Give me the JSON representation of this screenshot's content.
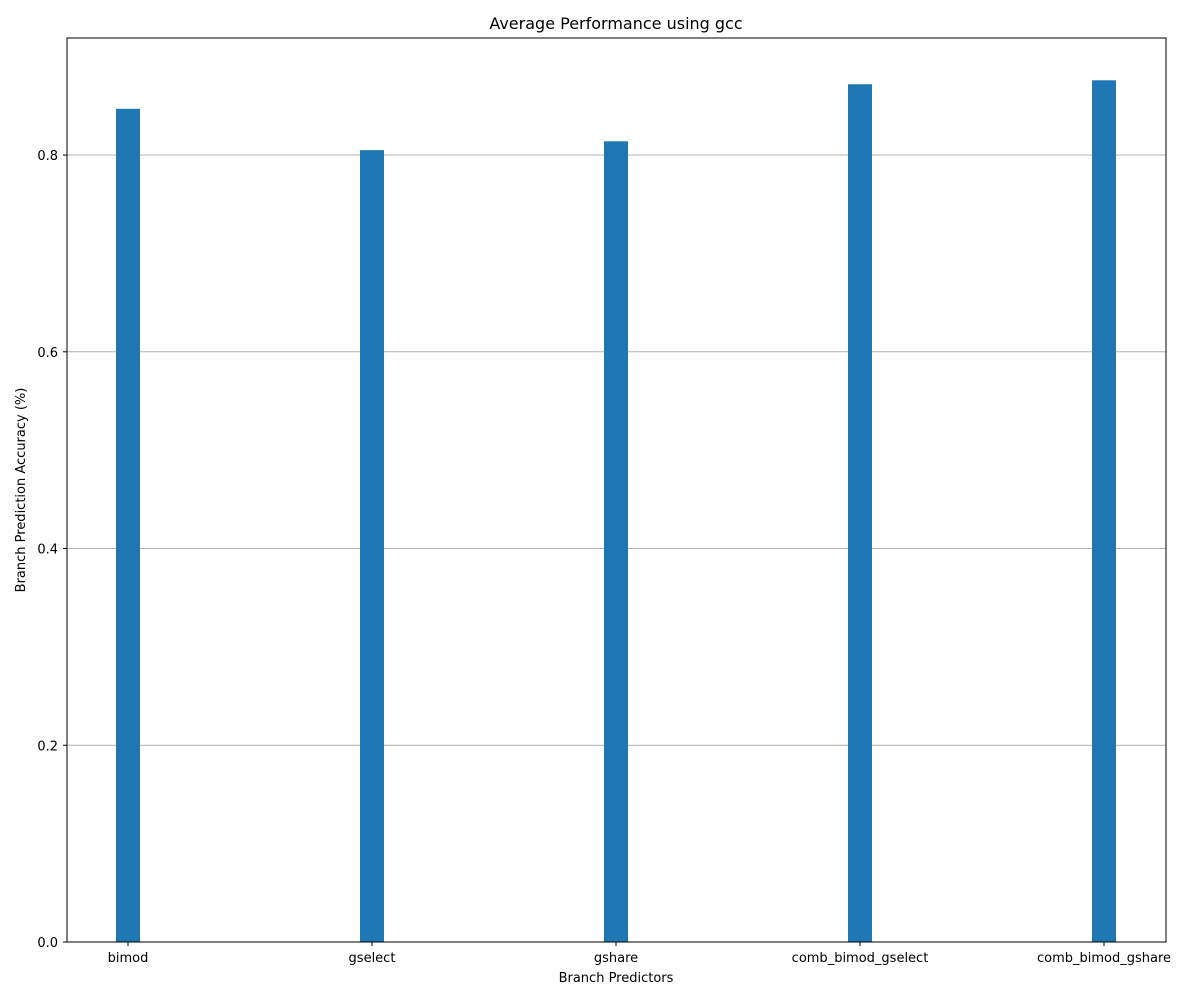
{
  "chart_data": {
    "type": "bar",
    "title": "Average Performance using gcc",
    "xlabel": "Branch Predictors",
    "ylabel": "Branch Prediction Accuracy (%)",
    "categories": [
      "bimod",
      "gselect",
      "gshare",
      "comb_bimod_gselect",
      "comb_bimod_gshare"
    ],
    "values": [
      0.847,
      0.805,
      0.814,
      0.872,
      0.876
    ],
    "ylim": [
      0,
      0.919
    ],
    "yticks": [
      0.0,
      0.2,
      0.4,
      0.6,
      0.8
    ],
    "ytick_labels": [
      "0.0",
      "0.2",
      "0.4",
      "0.6",
      "0.8"
    ],
    "grid": "horizontal",
    "bar_color": "#1f77b4",
    "grid_color": "#b0b0b0"
  }
}
